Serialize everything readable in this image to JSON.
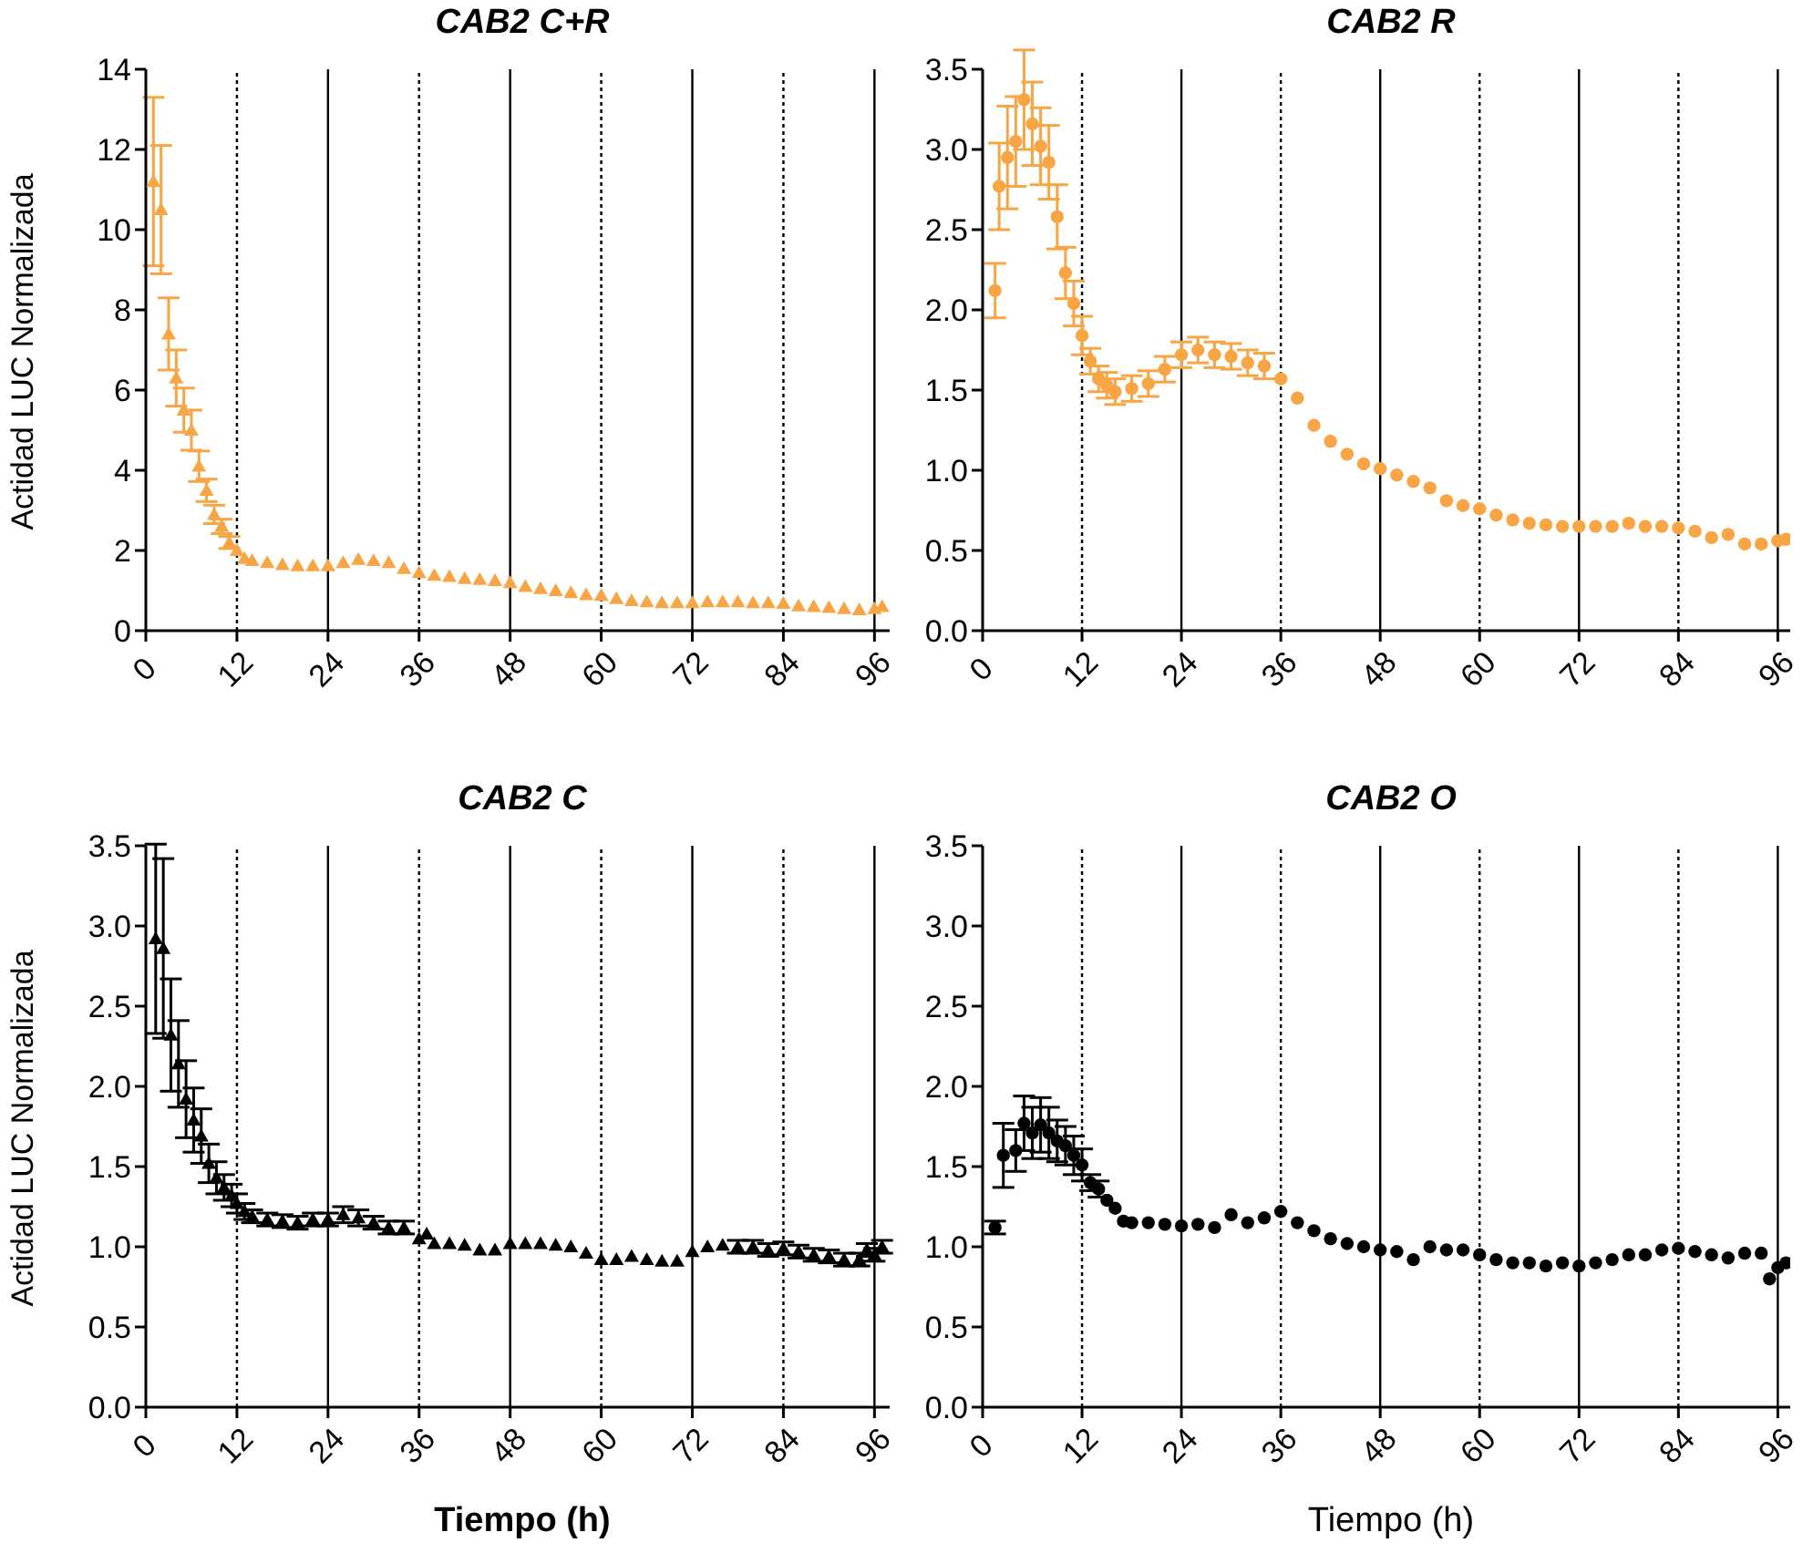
{
  "chart_data": [
    {
      "type": "scatter",
      "title": "CAB2 C+R",
      "ylabel": "Actidad LUC Normalizada",
      "marker": "triangle",
      "grid": false,
      "legend": false,
      "xlim": [
        0,
        98
      ],
      "xticks": [
        0,
        12,
        24,
        36,
        48,
        60,
        72,
        84,
        96
      ],
      "ylim": [
        0,
        14
      ],
      "yticks": [
        0,
        2,
        4,
        6,
        8,
        10,
        12,
        14
      ],
      "series": [
        {
          "color": "#f7a545",
          "x": [
            1,
            2,
            3,
            4,
            5,
            6,
            7,
            8,
            9,
            10,
            11,
            12,
            13,
            14,
            16,
            18,
            20,
            22,
            24,
            26,
            28,
            30,
            32,
            34,
            36,
            38,
            40,
            42,
            44,
            46,
            48,
            50,
            52,
            54,
            56,
            58,
            60,
            62,
            64,
            66,
            68,
            70,
            72,
            74,
            76,
            78,
            80,
            82,
            84,
            86,
            88,
            90,
            92,
            94,
            96,
            97
          ],
          "values": [
            11.2,
            10.5,
            7.4,
            6.3,
            5.5,
            5.0,
            4.1,
            3.5,
            2.9,
            2.6,
            2.2,
            2.0,
            1.8,
            1.75,
            1.7,
            1.65,
            1.62,
            1.62,
            1.62,
            1.7,
            1.78,
            1.75,
            1.7,
            1.55,
            1.45,
            1.38,
            1.35,
            1.3,
            1.28,
            1.25,
            1.2,
            1.1,
            1.05,
            1.0,
            0.95,
            0.9,
            0.88,
            0.8,
            0.75,
            0.72,
            0.7,
            0.7,
            0.7,
            0.72,
            0.72,
            0.72,
            0.7,
            0.7,
            0.68,
            0.62,
            0.6,
            0.58,
            0.55,
            0.52,
            0.55,
            0.6
          ],
          "errors": [
            2.1,
            1.6,
            0.9,
            0.7,
            0.55,
            0.5,
            0.38,
            0.28,
            0.23,
            0.18,
            0.15,
            null,
            null,
            null,
            null,
            null,
            null,
            null,
            null,
            null,
            null,
            null,
            null,
            null,
            null,
            null,
            null,
            null,
            null,
            null,
            null,
            null,
            null,
            null,
            null,
            null,
            null,
            null,
            null,
            null,
            null,
            null,
            null,
            null,
            null,
            null,
            null,
            null,
            null,
            null,
            null,
            null,
            null,
            null,
            null,
            null
          ]
        }
      ],
      "ref_lines": [
        {
          "axis": "x",
          "value": 12,
          "line_style": "dotted"
        },
        {
          "axis": "x",
          "value": 24,
          "line_style": "solid"
        },
        {
          "axis": "x",
          "value": 36,
          "line_style": "dotted"
        },
        {
          "axis": "x",
          "value": 48,
          "line_style": "solid"
        },
        {
          "axis": "x",
          "value": 60,
          "line_style": "dotted"
        },
        {
          "axis": "x",
          "value": 72,
          "line_style": "solid"
        },
        {
          "axis": "x",
          "value": 84,
          "line_style": "dotted"
        },
        {
          "axis": "x",
          "value": 96,
          "line_style": "solid"
        }
      ]
    },
    {
      "type": "scatter",
      "title": "CAB2 R",
      "marker": "circle",
      "grid": false,
      "legend": false,
      "xlim": [
        0,
        97.5
      ],
      "xticks": [
        0,
        12,
        24,
        36,
        48,
        60,
        72,
        84,
        96
      ],
      "ylim": [
        0,
        3.5
      ],
      "yticks": [
        {
          "value": 0,
          "label": "0.0"
        },
        0.5,
        {
          "value": 1,
          "label": "1.0"
        },
        1.5,
        {
          "value": 2,
          "label": "2.0"
        },
        2.5,
        {
          "value": 3,
          "label": "3.0"
        },
        3.5
      ],
      "series": [
        {
          "color": "#f7a545",
          "x": [
            1.5,
            2,
            3,
            4,
            5,
            6,
            7,
            8,
            9,
            10,
            11,
            12,
            13,
            14,
            15,
            16,
            18,
            20,
            22,
            24,
            26,
            28,
            30,
            32,
            34,
            36,
            38,
            40,
            42,
            44,
            46,
            48,
            50,
            52,
            54,
            56,
            58,
            60,
            62,
            64,
            66,
            68,
            70,
            72,
            74,
            76,
            78,
            80,
            82,
            84,
            86,
            88,
            90,
            92,
            94,
            96,
            97
          ],
          "values": [
            2.12,
            2.77,
            2.95,
            3.05,
            3.31,
            3.16,
            3.02,
            2.92,
            2.58,
            2.23,
            2.04,
            1.84,
            1.68,
            1.57,
            1.53,
            1.49,
            1.51,
            1.54,
            1.63,
            1.72,
            1.75,
            1.72,
            1.71,
            1.67,
            1.65,
            1.57,
            1.45,
            1.28,
            1.18,
            1.1,
            1.04,
            1.01,
            0.97,
            0.93,
            0.89,
            0.81,
            0.78,
            0.76,
            0.72,
            0.69,
            0.67,
            0.66,
            0.65,
            0.65,
            0.65,
            0.65,
            0.67,
            0.65,
            0.65,
            0.64,
            0.62,
            0.58,
            0.6,
            0.54,
            0.54,
            0.56,
            0.57
          ],
          "errors": [
            0.17,
            0.27,
            0.32,
            0.28,
            0.31,
            0.26,
            0.24,
            0.23,
            0.2,
            0.16,
            0.14,
            0.12,
            0.08,
            0.08,
            0.08,
            0.08,
            0.08,
            0.08,
            0.08,
            0.08,
            0.08,
            0.08,
            0.08,
            0.08,
            0.08,
            null,
            null,
            null,
            null,
            null,
            null,
            null,
            null,
            null,
            null,
            null,
            null,
            null,
            null,
            null,
            null,
            null,
            null,
            null,
            null,
            null,
            null,
            null,
            null,
            null,
            null,
            null,
            null,
            null,
            null,
            null,
            null
          ]
        }
      ],
      "ref_lines": [
        {
          "axis": "x",
          "value": 12,
          "line_style": "dotted"
        },
        {
          "axis": "x",
          "value": 24,
          "line_style": "solid"
        },
        {
          "axis": "x",
          "value": 36,
          "line_style": "dotted"
        },
        {
          "axis": "x",
          "value": 48,
          "line_style": "solid"
        },
        {
          "axis": "x",
          "value": 60,
          "line_style": "dotted"
        },
        {
          "axis": "x",
          "value": 72,
          "line_style": "solid"
        },
        {
          "axis": "x",
          "value": 84,
          "line_style": "dotted"
        },
        {
          "axis": "x",
          "value": 96,
          "line_style": "solid"
        }
      ]
    },
    {
      "type": "scatter",
      "title": "CAB2 C",
      "ylabel": "Actidad LUC Normalizada",
      "xlabel": "Tiempo (h)",
      "marker": "triangle",
      "grid": false,
      "legend": false,
      "xlim": [
        0,
        98
      ],
      "xticks": [
        0,
        12,
        24,
        36,
        48,
        60,
        72,
        84,
        96
      ],
      "ylim": [
        0,
        3.5
      ],
      "yticks": [
        {
          "value": 0,
          "label": "0.0"
        },
        0.5,
        {
          "value": 1,
          "label": "1.0"
        },
        1.5,
        {
          "value": 2,
          "label": "2.0"
        },
        2.5,
        {
          "value": 3,
          "label": "3.0"
        },
        3.5
      ],
      "series": [
        {
          "color": "#000000",
          "x": [
            1.3,
            2.3,
            3.3,
            4.3,
            5.3,
            6.3,
            7.3,
            8.3,
            9.3,
            10.3,
            11.3,
            12,
            13,
            14,
            16,
            18,
            20,
            22,
            24,
            26,
            28,
            30,
            32,
            34,
            36,
            37,
            38,
            40,
            42,
            44,
            46,
            48,
            50,
            52,
            54,
            56,
            58,
            60,
            62,
            64,
            66,
            68,
            70,
            72,
            74,
            76,
            78,
            80,
            82,
            84,
            86,
            88,
            90,
            92,
            94,
            95,
            96,
            97
          ],
          "values": [
            2.92,
            2.86,
            2.32,
            2.14,
            1.92,
            1.79,
            1.69,
            1.52,
            1.43,
            1.37,
            1.32,
            1.27,
            1.22,
            1.19,
            1.17,
            1.16,
            1.15,
            1.17,
            1.17,
            1.2,
            1.18,
            1.15,
            1.12,
            1.12,
            1.05,
            1.08,
            1.02,
            1.02,
            1.01,
            0.98,
            0.98,
            1.02,
            1.02,
            1.02,
            1.01,
            1.0,
            0.96,
            0.92,
            0.92,
            0.94,
            0.92,
            0.91,
            0.91,
            0.97,
            1.0,
            1.01,
            1.0,
            1.0,
            0.98,
            0.99,
            0.97,
            0.95,
            0.94,
            0.92,
            0.92,
            0.98,
            0.95,
            1.0
          ],
          "errors": [
            0.59,
            0.56,
            0.35,
            0.27,
            0.24,
            0.2,
            0.17,
            0.12,
            0.1,
            0.08,
            0.07,
            0.06,
            0.05,
            0.04,
            0.04,
            0.04,
            0.04,
            0.04,
            0.04,
            0.05,
            0.05,
            0.04,
            0.04,
            0.04,
            null,
            null,
            null,
            null,
            null,
            null,
            null,
            null,
            null,
            null,
            null,
            null,
            null,
            null,
            null,
            null,
            null,
            null,
            null,
            null,
            null,
            null,
            0.04,
            0.04,
            0.04,
            0.04,
            0.04,
            0.04,
            0.04,
            0.04,
            0.04,
            0.04,
            0.04,
            0.04
          ]
        }
      ],
      "ref_lines": [
        {
          "axis": "x",
          "value": 12,
          "line_style": "dotted"
        },
        {
          "axis": "x",
          "value": 24,
          "line_style": "solid"
        },
        {
          "axis": "x",
          "value": 36,
          "line_style": "dotted"
        },
        {
          "axis": "x",
          "value": 48,
          "line_style": "solid"
        },
        {
          "axis": "x",
          "value": 60,
          "line_style": "dotted"
        },
        {
          "axis": "x",
          "value": 72,
          "line_style": "solid"
        },
        {
          "axis": "x",
          "value": 84,
          "line_style": "dotted"
        },
        {
          "axis": "x",
          "value": 96,
          "line_style": "solid"
        }
      ]
    },
    {
      "type": "scatter",
      "title": "CAB2 O",
      "xlabel": "Tiempo (h)",
      "marker": "circle",
      "grid": false,
      "legend": false,
      "xlim": [
        0,
        97.5
      ],
      "xticks": [
        0,
        12,
        24,
        36,
        48,
        60,
        72,
        84,
        96
      ],
      "ylim": [
        0,
        3.5
      ],
      "yticks": [
        {
          "value": 0,
          "label": "0.0"
        },
        0.5,
        {
          "value": 1,
          "label": "1.0"
        },
        1.5,
        {
          "value": 2,
          "label": "2.0"
        },
        2.5,
        {
          "value": 3,
          "label": "3.0"
        },
        3.5
      ],
      "series": [
        {
          "color": "#000000",
          "x": [
            1.5,
            2.5,
            4,
            5,
            6,
            7,
            8,
            9,
            10,
            11,
            12,
            13,
            14,
            15,
            16,
            17,
            18,
            20,
            22,
            24,
            26,
            28,
            30,
            32,
            34,
            36,
            38,
            40,
            42,
            44,
            46,
            48,
            50,
            52,
            54,
            56,
            58,
            60,
            62,
            64,
            66,
            68,
            70,
            72,
            74,
            76,
            78,
            80,
            82,
            84,
            86,
            88,
            90,
            92,
            94,
            95,
            96,
            97
          ],
          "values": [
            1.12,
            1.57,
            1.6,
            1.77,
            1.71,
            1.76,
            1.71,
            1.66,
            1.63,
            1.57,
            1.51,
            1.4,
            1.36,
            1.29,
            1.24,
            1.16,
            1.15,
            1.15,
            1.14,
            1.13,
            1.14,
            1.12,
            1.2,
            1.15,
            1.18,
            1.22,
            1.15,
            1.1,
            1.05,
            1.02,
            1.0,
            0.98,
            0.97,
            0.92,
            1.0,
            0.98,
            0.98,
            0.95,
            0.92,
            0.9,
            0.9,
            0.88,
            0.9,
            0.88,
            0.9,
            0.92,
            0.95,
            0.95,
            0.98,
            0.99,
            0.97,
            0.95,
            0.93,
            0.96,
            0.96,
            0.8,
            0.87,
            0.9
          ],
          "errors": [
            0.04,
            0.2,
            0.13,
            0.17,
            0.16,
            0.17,
            0.16,
            0.13,
            0.12,
            0.12,
            0.1,
            0.05,
            0.05,
            null,
            null,
            null,
            null,
            null,
            null,
            null,
            null,
            null,
            null,
            null,
            null,
            null,
            null,
            null,
            null,
            null,
            null,
            null,
            null,
            null,
            null,
            null,
            null,
            null,
            null,
            null,
            null,
            null,
            null,
            null,
            null,
            null,
            null,
            null,
            null,
            null,
            null,
            null,
            null,
            null,
            null,
            null,
            null,
            null
          ]
        }
      ],
      "ref_lines": [
        {
          "axis": "x",
          "value": 12,
          "line_style": "dotted"
        },
        {
          "axis": "x",
          "value": 24,
          "line_style": "solid"
        },
        {
          "axis": "x",
          "value": 36,
          "line_style": "dotted"
        },
        {
          "axis": "x",
          "value": 48,
          "line_style": "solid"
        },
        {
          "axis": "x",
          "value": 60,
          "line_style": "dotted"
        },
        {
          "axis": "x",
          "value": 72,
          "line_style": "solid"
        },
        {
          "axis": "x",
          "value": 84,
          "line_style": "dotted"
        },
        {
          "axis": "x",
          "value": 96,
          "line_style": "solid"
        }
      ]
    }
  ]
}
